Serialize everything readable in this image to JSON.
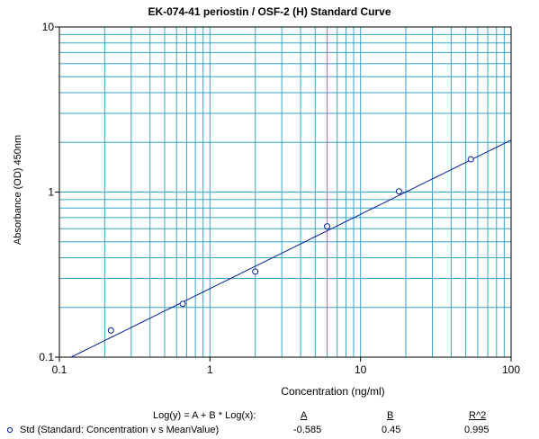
{
  "chart_data": {
    "type": "scatter",
    "title": "EK-074-41  periostin / OSF-2 (H) Standard Curve",
    "xlabel": "Concentration (ng/ml)",
    "ylabel": "Absorbance (OD) 450nm",
    "x_scale": "log",
    "y_scale": "log",
    "xlim": [
      0.1,
      100
    ],
    "ylim": [
      0.1,
      10
    ],
    "x_ticks": [
      "0.1",
      "1",
      "10",
      "100"
    ],
    "y_ticks": [
      "0.1",
      "1",
      "10"
    ],
    "grid": true,
    "series": [
      {
        "name": "Std (Standard: Concentration v s MeanValue)",
        "marker": "circle",
        "x": [
          0.22,
          0.66,
          2.0,
          6.0,
          18.0,
          54.0
        ],
        "y": [
          0.145,
          0.21,
          0.33,
          0.62,
          1.01,
          1.58
        ]
      }
    ],
    "fit": {
      "equation": "Log(y) = A + B * Log(x):",
      "A": -0.585,
      "B": 0.45,
      "R2": 0.995
    }
  },
  "legend": {
    "equation_label": "Log(y) = A + B * Log(x):",
    "col_a": "A",
    "col_b": "B",
    "col_r2": "R^2",
    "series_label": "Std (Standard: Concentration v s MeanValue)",
    "a_value": "-0.585",
    "b_value": "0.45",
    "r2_value": "0.995"
  },
  "colors": {
    "grid": "#33a6cc",
    "curve": "#001f99",
    "marker": "#001f99",
    "axis": "#000000"
  }
}
